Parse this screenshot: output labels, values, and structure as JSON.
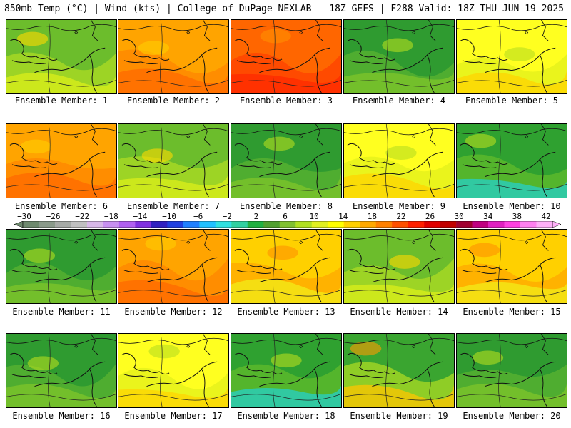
{
  "header": {
    "title_left": "850mb Temp (°C) | Wind (kts) | College of DuPage NEXLAB",
    "title_right": "18Z GEFS | F288 Valid: 18Z THU JUN 19 2025"
  },
  "panels": [
    {
      "caption": "Ensemble Member: 1",
      "tone": "yellow-green"
    },
    {
      "caption": "Ensemble Member: 2",
      "tone": "orange"
    },
    {
      "caption": "Ensemble Member: 3",
      "tone": "orange-red"
    },
    {
      "caption": "Ensemble Member: 4",
      "tone": "green"
    },
    {
      "caption": "Ensemble Member: 5",
      "tone": "yellow"
    },
    {
      "caption": "Ensemble Member: 6",
      "tone": "orange"
    },
    {
      "caption": "Ensemble Member: 7",
      "tone": "yellow-green"
    },
    {
      "caption": "Ensemble Member: 8",
      "tone": "green"
    },
    {
      "caption": "Ensemble Member: 9",
      "tone": "yellow"
    },
    {
      "caption": "Ensemble Member: 10",
      "tone": "green-cyan"
    },
    {
      "caption": "Ensemble Member: 11",
      "tone": "green"
    },
    {
      "caption": "Ensemble Member: 12",
      "tone": "orange"
    },
    {
      "caption": "Ensemble Member: 13",
      "tone": "yellow-orange"
    },
    {
      "caption": "Ensemble Member: 14",
      "tone": "yellow-green"
    },
    {
      "caption": "Ensemble Member: 15",
      "tone": "yellow-orange"
    },
    {
      "caption": "Ensemble Member: 16",
      "tone": "green"
    },
    {
      "caption": "Ensemble Member: 17",
      "tone": "yellow"
    },
    {
      "caption": "Ensemble Member: 18",
      "tone": "green-cyan"
    },
    {
      "caption": "Ensemble Member: 19",
      "tone": "green-orange"
    },
    {
      "caption": "Ensemble Member: 20",
      "tone": "green"
    }
  ],
  "colorbar": {
    "labels": [
      "-30",
      "-26",
      "-22",
      "-18",
      "-14",
      "-10",
      "-6",
      "-2",
      "2",
      "6",
      "10",
      "14",
      "18",
      "22",
      "26",
      "30",
      "34",
      "38",
      "42"
    ],
    "colors": [
      "#6e8a6e",
      "#8a9a8a",
      "#a6aaa6",
      "#c0c0c0",
      "#d8b8e8",
      "#c890f0",
      "#b060f0",
      "#8030e0",
      "#3020c0",
      "#2040e0",
      "#2080ff",
      "#20c0ff",
      "#30e0e0",
      "#30d0a0",
      "#20b040",
      "#50a030",
      "#80c030",
      "#b0e020",
      "#e0f020",
      "#ffff00",
      "#ffd000",
      "#ffa800",
      "#ff8000",
      "#ff5000",
      "#ff2000",
      "#e00000",
      "#c00000",
      "#a00030",
      "#c00080",
      "#e020c0",
      "#ff40e0",
      "#ff80f0",
      "#ffb0f8"
    ]
  },
  "tone_colors": {
    "green": [
      "#2f9b30",
      "#55b030",
      "#7fc62a",
      "#b5de1e"
    ],
    "yellow-green": [
      "#6cbd2c",
      "#a6d824",
      "#dcef1a",
      "#ffd800"
    ],
    "yellow": [
      "#ffff20",
      "#e6f21c",
      "#ffd400",
      "#b7dd20"
    ],
    "yellow-orange": [
      "#ffd000",
      "#ffad00",
      "#f2ec18",
      "#ff9100"
    ],
    "orange": [
      "#ffa400",
      "#ff8a00",
      "#ff6a00",
      "#ffcf00"
    ],
    "orange-red": [
      "#ff6600",
      "#ff4500",
      "#ff2a00",
      "#ff9000"
    ],
    "green-cyan": [
      "#2fa130",
      "#5ab82c",
      "#26d0c8",
      "#b8de1e"
    ],
    "green-orange": [
      "#3aa530",
      "#9fd324",
      "#ffc400",
      "#ff9900"
    ]
  }
}
